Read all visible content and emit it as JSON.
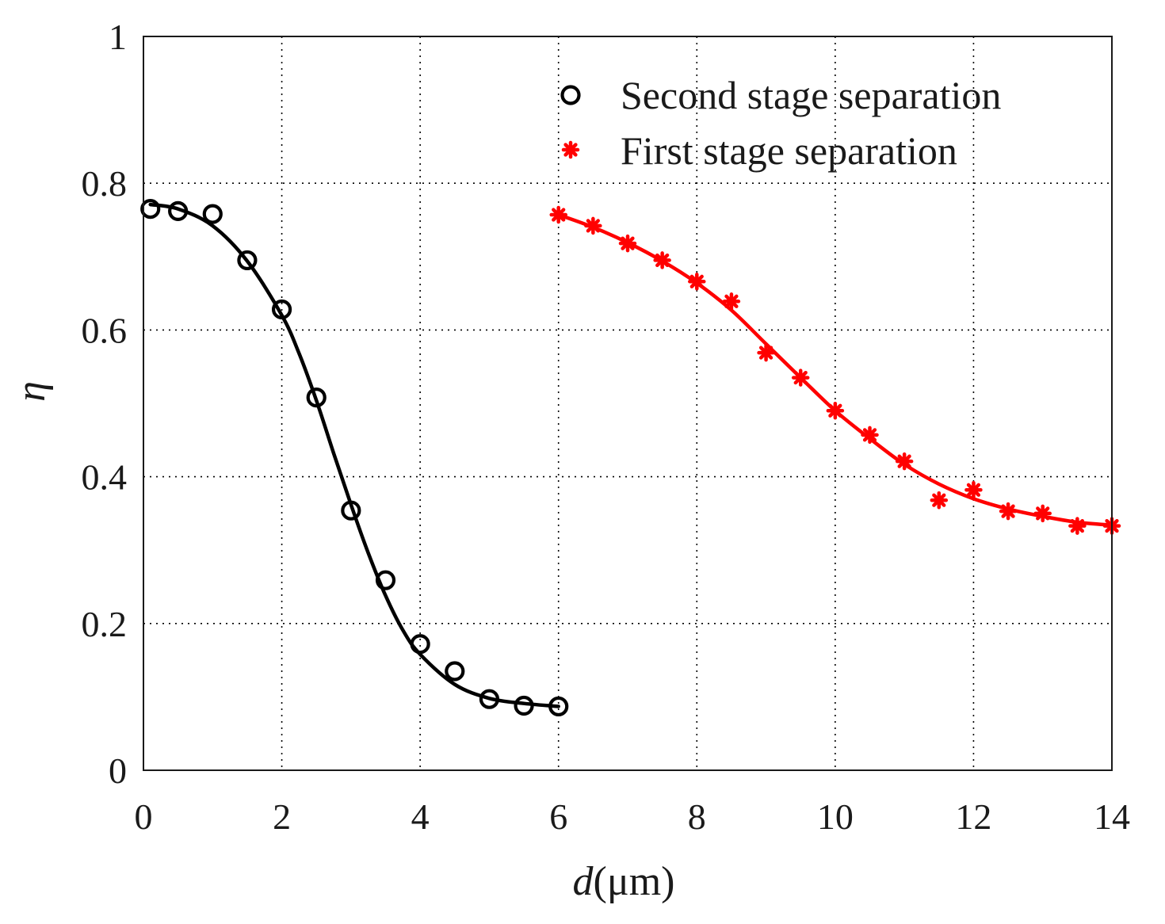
{
  "chart_data": {
    "type": "scatter",
    "xlabel_var": "d",
    "xlabel_unit": "(μm)",
    "ylabel": "η",
    "xlim": [
      0,
      14
    ],
    "ylim": [
      0,
      1
    ],
    "xticks": [
      0,
      2,
      4,
      6,
      8,
      10,
      12,
      14
    ],
    "yticks": [
      0,
      0.2,
      0.4,
      0.6,
      0.8,
      1
    ],
    "xtick_labels": [
      "0",
      "2",
      "4",
      "6",
      "8",
      "10",
      "12",
      "14"
    ],
    "ytick_labels": [
      "0",
      "0.2",
      "0.4",
      "0.6",
      "0.8",
      "1"
    ],
    "grid": true,
    "legend_position": "top-right",
    "series": [
      {
        "name": "Second stage separation",
        "marker": "open-circle",
        "color": "#000000",
        "x": [
          0.1,
          0.5,
          1.0,
          1.5,
          2.0,
          2.5,
          3.0,
          3.5,
          4.0,
          4.5,
          5.0,
          5.5,
          6.0
        ],
        "y": [
          0.765,
          0.762,
          0.758,
          0.695,
          0.628,
          0.508,
          0.354,
          0.259,
          0.172,
          0.135,
          0.097,
          0.088,
          0.087
        ],
        "fit_x": [
          0.1,
          0.5,
          1.0,
          1.5,
          2.0,
          2.25,
          2.5,
          2.75,
          3.0,
          3.25,
          3.5,
          3.75,
          4.0,
          4.5,
          5.0,
          5.5,
          6.0
        ],
        "fit_y": [
          0.771,
          0.765,
          0.742,
          0.694,
          0.62,
          0.568,
          0.504,
          0.432,
          0.362,
          0.296,
          0.238,
          0.191,
          0.158,
          0.117,
          0.098,
          0.091,
          0.087
        ]
      },
      {
        "name": "First stage separation",
        "marker": "asterisk",
        "color": "#ff0000",
        "x": [
          6.0,
          6.5,
          7.0,
          7.5,
          8.0,
          8.5,
          9.0,
          9.5,
          10.0,
          10.5,
          11.0,
          11.5,
          12.0,
          12.5,
          13.0,
          13.5,
          14.0
        ],
        "y": [
          0.757,
          0.742,
          0.718,
          0.695,
          0.666,
          0.639,
          0.569,
          0.535,
          0.49,
          0.457,
          0.421,
          0.368,
          0.382,
          0.353,
          0.35,
          0.333,
          0.333
        ],
        "fit_x": [
          6.0,
          6.5,
          7.0,
          7.5,
          8.0,
          8.5,
          9.0,
          9.5,
          10.0,
          10.5,
          11.0,
          11.5,
          12.0,
          12.5,
          13.0,
          13.5,
          14.0
        ],
        "fit_y": [
          0.757,
          0.74,
          0.719,
          0.694,
          0.664,
          0.627,
          0.581,
          0.535,
          0.49,
          0.452,
          0.417,
          0.39,
          0.37,
          0.356,
          0.346,
          0.338,
          0.334
        ]
      }
    ]
  }
}
